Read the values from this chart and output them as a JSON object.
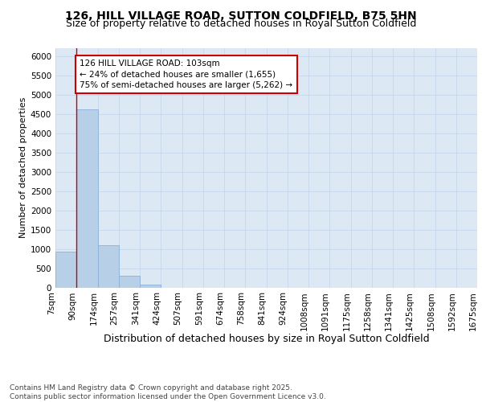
{
  "title": "126, HILL VILLAGE ROAD, SUTTON COLDFIELD, B75 5HN",
  "subtitle": "Size of property relative to detached houses in Royal Sutton Coldfield",
  "xlabel": "Distribution of detached houses by size in Royal Sutton Coldfield",
  "ylabel": "Number of detached properties",
  "bar_values": [
    930,
    4620,
    1090,
    295,
    80,
    0,
    0,
    0,
    0,
    0,
    0,
    0,
    0,
    0,
    0,
    0,
    0,
    0,
    0,
    0
  ],
  "bin_labels": [
    "7sqm",
    "90sqm",
    "174sqm",
    "257sqm",
    "341sqm",
    "424sqm",
    "507sqm",
    "591sqm",
    "674sqm",
    "758sqm",
    "841sqm",
    "924sqm",
    "1008sqm",
    "1091sqm",
    "1175sqm",
    "1258sqm",
    "1341sqm",
    "1425sqm",
    "1508sqm",
    "1592sqm",
    "1675sqm"
  ],
  "bar_color": "#b8cfe8",
  "bar_edgecolor": "#8ab0d8",
  "ylim_max": 6200,
  "yticks": [
    0,
    500,
    1000,
    1500,
    2000,
    2500,
    3000,
    3500,
    4000,
    4500,
    5000,
    5500,
    6000
  ],
  "property_line_color": "#cc0000",
  "property_line_bin_index": 1,
  "annotation_text": "126 HILL VILLAGE ROAD: 103sqm\n← 24% of detached houses are smaller (1,655)\n75% of semi-detached houses are larger (5,262) →",
  "annotation_box_edgecolor": "#cc0000",
  "grid_color": "#c0d4e8",
  "background_color": "#dce8f4",
  "footer_text": "Contains HM Land Registry data © Crown copyright and database right 2025.\nContains public sector information licensed under the Open Government Licence v3.0.",
  "title_fontsize": 10,
  "subtitle_fontsize": 9,
  "ylabel_fontsize": 8,
  "xlabel_fontsize": 9,
  "tick_fontsize": 7.5,
  "annotation_fontsize": 7.5,
  "footer_fontsize": 6.5
}
